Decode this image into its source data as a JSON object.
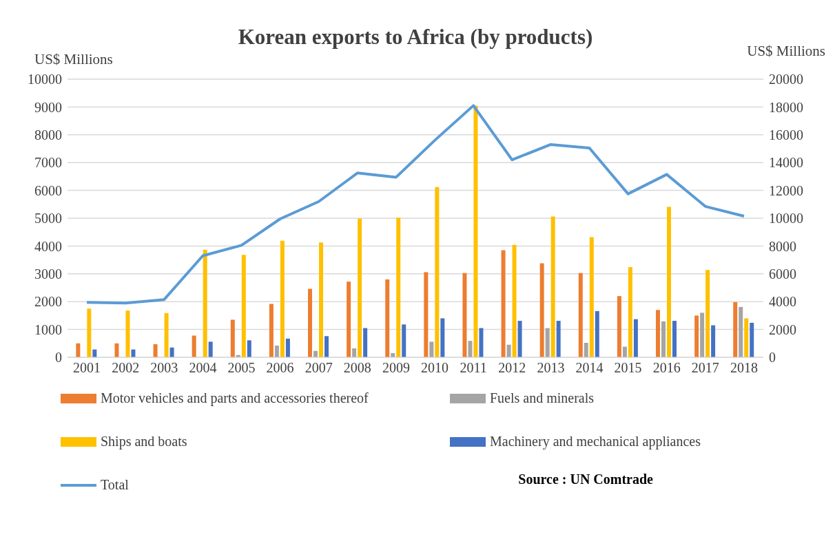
{
  "chart_data": {
    "type": "bar",
    "title": "Korean exports to Africa (by products)",
    "ylabel": "US$ Millions",
    "y2label": "US$ Millions",
    "categories": [
      "2001",
      "2002",
      "2003",
      "2004",
      "2005",
      "2006",
      "2007",
      "2008",
      "2009",
      "2010",
      "2011",
      "2012",
      "2013",
      "2014",
      "2015",
      "2016",
      "2017",
      "2018"
    ],
    "series": [
      {
        "name": "Motor vehicles and parts and accessories thereof",
        "color": "#ed7d31",
        "values": [
          500,
          500,
          470,
          780,
          1350,
          1920,
          2460,
          2720,
          2800,
          3060,
          3030,
          3850,
          3380,
          3030,
          2200,
          1700,
          1500,
          1980
        ]
      },
      {
        "name": "Fuels and minerals",
        "color": "#a5a5a5",
        "values": [
          null,
          null,
          null,
          null,
          80,
          420,
          230,
          320,
          150,
          560,
          590,
          450,
          1050,
          520,
          380,
          1290,
          1600,
          1810
        ]
      },
      {
        "name": "Ships and boats",
        "color": "#ffc000",
        "values": [
          1750,
          1680,
          1590,
          3870,
          3680,
          4190,
          4130,
          4990,
          5020,
          6120,
          9050,
          4040,
          5060,
          4320,
          3240,
          5410,
          3140,
          1400
        ]
      },
      {
        "name": "Machinery and mechanical appliances",
        "color": "#4472c4",
        "values": [
          280,
          280,
          350,
          560,
          610,
          670,
          760,
          1050,
          1180,
          1400,
          1050,
          1310,
          1310,
          1660,
          1370,
          1310,
          1150,
          1240
        ]
      },
      {
        "name": "Total",
        "type": "line",
        "axis": "y2",
        "color": "#5b9bd5",
        "values": [
          3950,
          3900,
          4150,
          7300,
          8050,
          9950,
          11200,
          13250,
          12950,
          15600,
          18100,
          14200,
          15300,
          15050,
          11750,
          13150,
          10850,
          10150
        ]
      }
    ],
    "ylim": [
      0,
      10000
    ],
    "yticks": [
      0,
      1000,
      2000,
      3000,
      4000,
      5000,
      6000,
      7000,
      8000,
      9000,
      10000
    ],
    "y2lim": [
      0,
      20000
    ],
    "y2ticks": [
      0,
      2000,
      4000,
      6000,
      8000,
      10000,
      12000,
      14000,
      16000,
      18000,
      20000
    ],
    "grid": "y",
    "legend": "bottom",
    "marker": "none",
    "line_style": "solid",
    "annotations": [
      "Source : UN Comtrade"
    ]
  }
}
